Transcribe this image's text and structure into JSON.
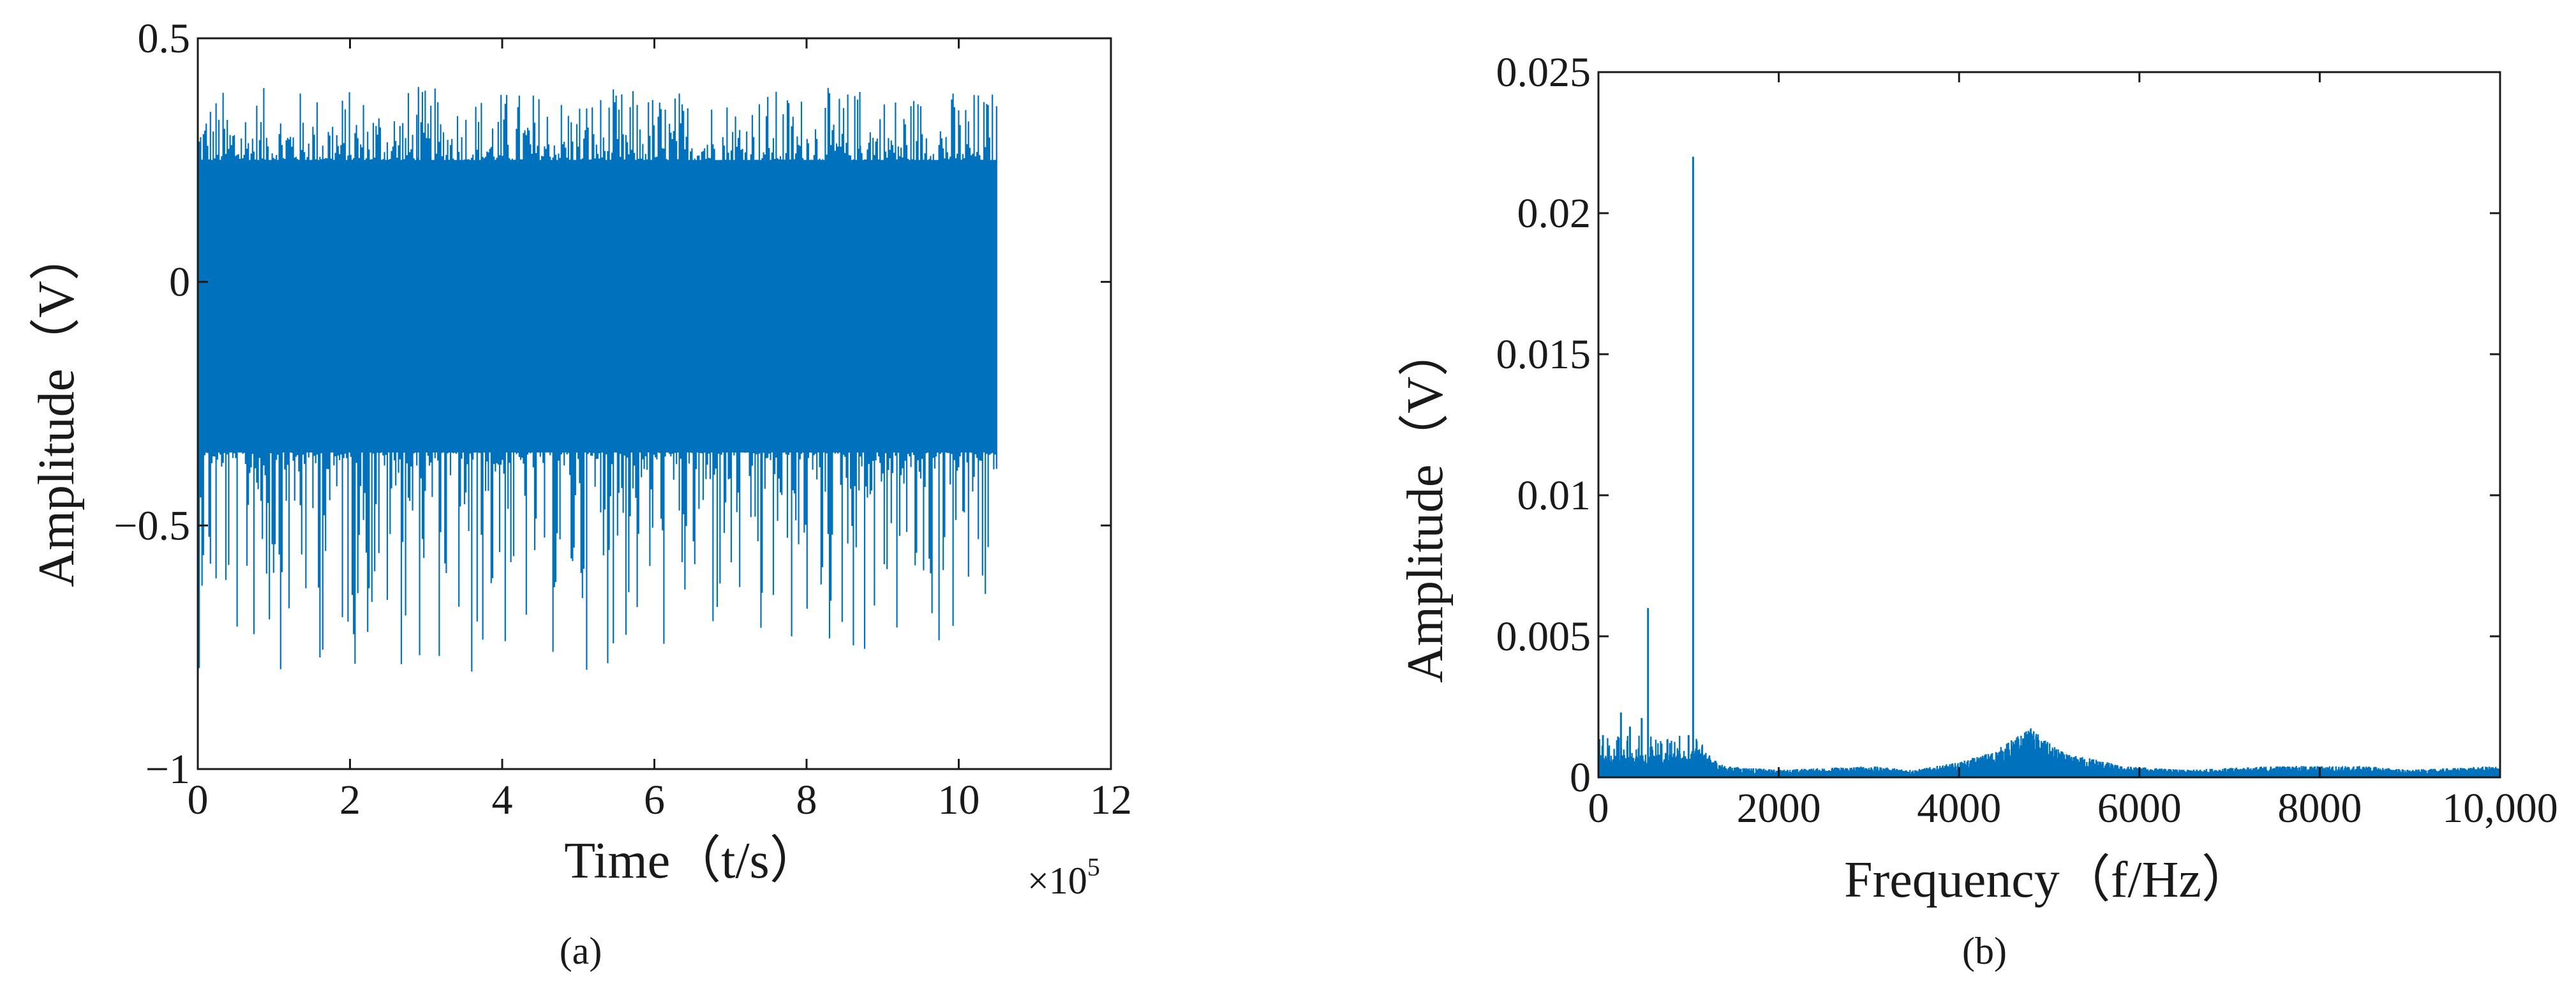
{
  "colors": {
    "series": "#0072BD",
    "axis": "#1a1a1a",
    "background": "#ffffff"
  },
  "chart_data": [
    {
      "panel": "(a)",
      "type": "line",
      "xlabel": "Time（t/s）",
      "ylabel": "Amplitude（V）",
      "x_multiplier": "×10",
      "x_multiplier_exp": "5",
      "xlim": [
        0,
        12
      ],
      "ylim": [
        -1,
        0.5
      ],
      "x_ticks": [
        0,
        2,
        4,
        6,
        8,
        10,
        12
      ],
      "y_ticks": [
        -1,
        -0.5,
        0,
        0.5
      ],
      "x_tick_labels": [
        "0",
        "2",
        "4",
        "6",
        "8",
        "10",
        "12"
      ],
      "y_tick_labels": [
        "−1",
        "−0.5",
        "0",
        "0.5"
      ],
      "grid": false,
      "series": [
        {
          "x_range": [
            0,
            10.5
          ],
          "band": {
            "upper": 0.25,
            "lower": -0.35
          },
          "peak_envelope": {
            "upper_max": 0.4,
            "lower_min": -0.8
          },
          "notable_points": [
            {
              "x": 2.9,
              "y": 0.4
            },
            {
              "x": 3.6,
              "y": -0.8
            },
            {
              "x": 8.7,
              "y": 0.39
            },
            {
              "x": 7.4,
              "y": -0.71
            }
          ]
        }
      ]
    },
    {
      "panel": "(b)",
      "type": "line",
      "xlabel": "Frequency（f/Hz）",
      "ylabel": "Amplitude（V）",
      "xlim": [
        0,
        10000
      ],
      "ylim": [
        0,
        0.025
      ],
      "x_ticks": [
        0,
        2000,
        4000,
        6000,
        8000,
        10000
      ],
      "y_ticks": [
        0,
        0.005,
        0.01,
        0.015,
        0.02,
        0.025
      ],
      "x_tick_labels": [
        "0",
        "2000",
        "4000",
        "6000",
        "8000",
        "10,000"
      ],
      "y_tick_labels": [
        "0",
        "0.005",
        "0.01",
        "0.015",
        "0.02",
        "0.025"
      ],
      "grid": false,
      "series": [
        {
          "peaks": [
            {
              "x": 50,
              "y": 0.0015
            },
            {
              "x": 250,
              "y": 0.0023
            },
            {
              "x": 350,
              "y": 0.0018
            },
            {
              "x": 480,
              "y": 0.0021
            },
            {
              "x": 550,
              "y": 0.006
            },
            {
              "x": 700,
              "y": 0.0012
            },
            {
              "x": 1000,
              "y": 0.0015
            },
            {
              "x": 1050,
              "y": 0.022
            },
            {
              "x": 1150,
              "y": 0.0011
            }
          ],
          "baseline_profile": [
            [
              0,
              0.0006
            ],
            [
              1000,
              0.0006
            ],
            [
              1100,
              0.0008
            ],
            [
              1400,
              0.0003
            ],
            [
              2000,
              0.0002
            ],
            [
              3000,
              0.0003
            ],
            [
              3500,
              0.0002
            ],
            [
              4000,
              0.0004
            ],
            [
              4400,
              0.0007
            ],
            [
              4650,
              0.0011
            ],
            [
              4800,
              0.0013
            ],
            [
              5000,
              0.0009
            ],
            [
              5200,
              0.0006
            ],
            [
              5500,
              0.0005
            ],
            [
              5800,
              0.0003
            ],
            [
              6500,
              0.0002
            ],
            [
              7500,
              0.0003
            ],
            [
              8500,
              0.0003
            ],
            [
              9000,
              0.0002
            ],
            [
              10000,
              0.0003
            ]
          ]
        }
      ]
    }
  ]
}
